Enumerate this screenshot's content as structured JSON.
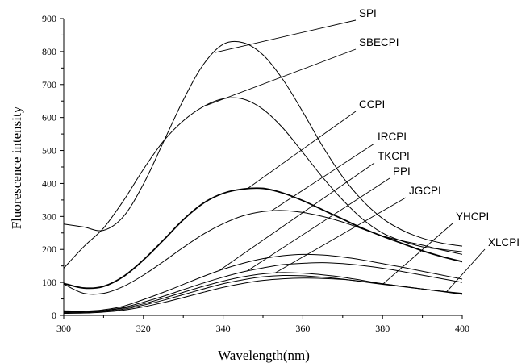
{
  "chart_data": {
    "type": "line",
    "xlabel": "Wavelength(nm)",
    "ylabel": "Fluorescence intensity",
    "xlim": [
      300,
      400
    ],
    "ylim": [
      0,
      900
    ],
    "xticks": [
      300,
      320,
      340,
      360,
      380,
      400
    ],
    "yticks": [
      0,
      100,
      200,
      300,
      400,
      500,
      600,
      700,
      800,
      900
    ],
    "grid": false,
    "legend": "none",
    "series": [
      {
        "name": "SPI",
        "x": [
          300,
          305,
          310,
          315,
          320,
          325,
          330,
          335,
          340,
          345,
          350,
          355,
          360,
          365,
          370,
          375,
          380,
          385,
          390,
          395,
          400
        ],
        "values": [
          277,
          268,
          258,
          300,
          398,
          525,
          653,
          760,
          822,
          827,
          790,
          715,
          617,
          512,
          420,
          348,
          294,
          258,
          234,
          219,
          210
        ]
      },
      {
        "name": "SBECPI",
        "x": [
          300,
          305,
          310,
          315,
          320,
          325,
          330,
          335,
          340,
          345,
          350,
          355,
          360,
          365,
          370,
          375,
          380,
          385,
          390,
          395,
          400
        ],
        "values": [
          143,
          208,
          265,
          348,
          443,
          528,
          590,
          633,
          657,
          656,
          625,
          568,
          494,
          418,
          350,
          292,
          250,
          225,
          208,
          200,
          193
        ]
      },
      {
        "name": "CCPI",
        "x": [
          300,
          305,
          310,
          315,
          320,
          325,
          330,
          335,
          340,
          345,
          350,
          355,
          360,
          365,
          370,
          375,
          380,
          385,
          390,
          395,
          400
        ],
        "values": [
          97,
          83,
          88,
          118,
          168,
          228,
          290,
          340,
          370,
          383,
          385,
          371,
          348,
          320,
          292,
          264,
          240,
          218,
          196,
          178,
          163
        ]
      },
      {
        "name": "IRCPI",
        "x": [
          300,
          305,
          310,
          315,
          320,
          325,
          330,
          335,
          340,
          345,
          350,
          355,
          360,
          365,
          370,
          375,
          380,
          385,
          390,
          395,
          400
        ],
        "values": [
          95,
          67,
          67,
          88,
          122,
          163,
          206,
          246,
          278,
          302,
          315,
          318,
          312,
          300,
          283,
          262,
          241,
          226,
          213,
          198,
          185
        ]
      },
      {
        "name": "TKCPI",
        "x": [
          300,
          305,
          310,
          315,
          320,
          325,
          330,
          335,
          340,
          345,
          350,
          355,
          360,
          365,
          370,
          375,
          380,
          385,
          390,
          395,
          400
        ],
        "values": [
          14,
          13,
          17,
          28,
          48,
          70,
          94,
          118,
          140,
          158,
          172,
          181,
          185,
          183,
          177,
          168,
          157,
          146,
          134,
          122,
          110
        ]
      },
      {
        "name": "PPI",
        "x": [
          300,
          305,
          310,
          315,
          320,
          325,
          330,
          335,
          340,
          345,
          350,
          355,
          360,
          365,
          370,
          375,
          380,
          385,
          390,
          395,
          400
        ],
        "values": [
          12,
          12,
          15,
          24,
          40,
          58,
          78,
          98,
          116,
          132,
          144,
          154,
          158,
          160,
          157,
          151,
          143,
          133,
          122,
          111,
          100
        ]
      },
      {
        "name": "JGCPI",
        "x": [
          300,
          305,
          310,
          315,
          320,
          325,
          330,
          335,
          340,
          345,
          350,
          355,
          360,
          365,
          370,
          375,
          380,
          385,
          390,
          395,
          400
        ],
        "values": [
          10,
          11,
          14,
          22,
          35,
          52,
          70,
          88,
          104,
          117,
          126,
          130,
          128,
          123,
          116,
          106,
          96,
          88,
          80,
          73,
          67
        ]
      },
      {
        "name": "YHCPI",
        "x": [
          300,
          305,
          310,
          315,
          320,
          325,
          330,
          335,
          340,
          345,
          350,
          355,
          360,
          365,
          370,
          375,
          380,
          385,
          390,
          395,
          400
        ],
        "values": [
          8,
          9,
          12,
          19,
          31,
          46,
          63,
          80,
          96,
          108,
          117,
          121,
          120,
          116,
          110,
          102,
          94,
          87,
          80,
          73,
          66
        ]
      },
      {
        "name": "XLCPI",
        "x": [
          300,
          305,
          310,
          315,
          320,
          325,
          330,
          335,
          340,
          345,
          350,
          355,
          360,
          365,
          370,
          375,
          380,
          385,
          390,
          395,
          400
        ],
        "values": [
          6,
          7,
          10,
          16,
          26,
          39,
          54,
          70,
          85,
          97,
          106,
          111,
          113,
          112,
          109,
          103,
          96,
          88,
          80,
          72,
          64
        ]
      }
    ]
  }
}
